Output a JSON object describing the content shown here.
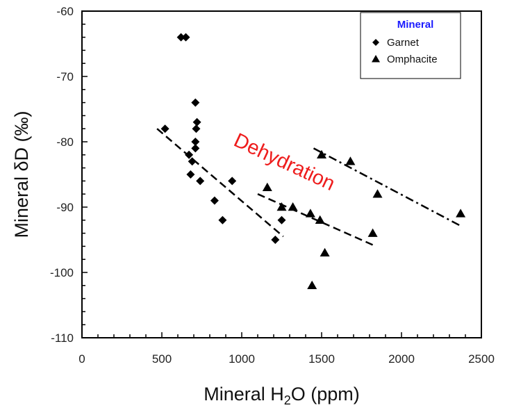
{
  "chart_data": {
    "type": "scatter",
    "xlabel_main": "Mineral H",
    "xlabel_sub": "2",
    "xlabel_rest": "O (ppm)",
    "ylabel": "Mineral δD (‰)",
    "xlim": [
      0,
      2500
    ],
    "ylim": [
      -110,
      -60
    ],
    "x_ticks": [
      0,
      500,
      1000,
      1500,
      2000,
      2500
    ],
    "y_ticks": [
      -60,
      -70,
      -80,
      -90,
      -100,
      -110
    ],
    "grid": false,
    "legend": {
      "title": "Mineral",
      "title_color": "#1a1aff",
      "placement": "top-right",
      "entries": [
        "Garnet",
        "Omphacite"
      ]
    },
    "annotation": {
      "text": "Dehydration",
      "color": "#ee1c1c",
      "x": 1250,
      "y": -84,
      "rotation_deg": 25
    },
    "series": [
      {
        "name": "Garnet",
        "marker": "diamond",
        "points": [
          [
            620,
            -64
          ],
          [
            650,
            -64
          ],
          [
            520,
            -78
          ],
          [
            710,
            -74
          ],
          [
            720,
            -77
          ],
          [
            715,
            -78
          ],
          [
            710,
            -80
          ],
          [
            710,
            -81
          ],
          [
            670,
            -82
          ],
          [
            690,
            -83
          ],
          [
            680,
            -85
          ],
          [
            740,
            -86
          ],
          [
            940,
            -86
          ],
          [
            830,
            -89
          ],
          [
            880,
            -92
          ],
          [
            1250,
            -92
          ],
          [
            1210,
            -95
          ]
        ]
      },
      {
        "name": "Omphacite",
        "marker": "triangle",
        "points": [
          [
            1500,
            -82
          ],
          [
            1680,
            -83
          ],
          [
            1160,
            -87
          ],
          [
            1850,
            -88
          ],
          [
            1250,
            -90
          ],
          [
            1320,
            -90
          ],
          [
            1430,
            -91
          ],
          [
            1490,
            -92
          ],
          [
            1820,
            -94
          ],
          [
            1520,
            -97
          ],
          [
            1440,
            -102
          ],
          [
            2370,
            -91
          ]
        ]
      }
    ],
    "trend_lines": [
      {
        "style": "dashed",
        "from": [
          470,
          -78
        ],
        "to": [
          1260,
          -94.5
        ]
      },
      {
        "style": "dashed",
        "from": [
          1100,
          -88
        ],
        "to": [
          1840,
          -96
        ]
      },
      {
        "style": "dash-dot",
        "from": [
          1450,
          -81
        ],
        "to": [
          2380,
          -93
        ]
      }
    ]
  }
}
